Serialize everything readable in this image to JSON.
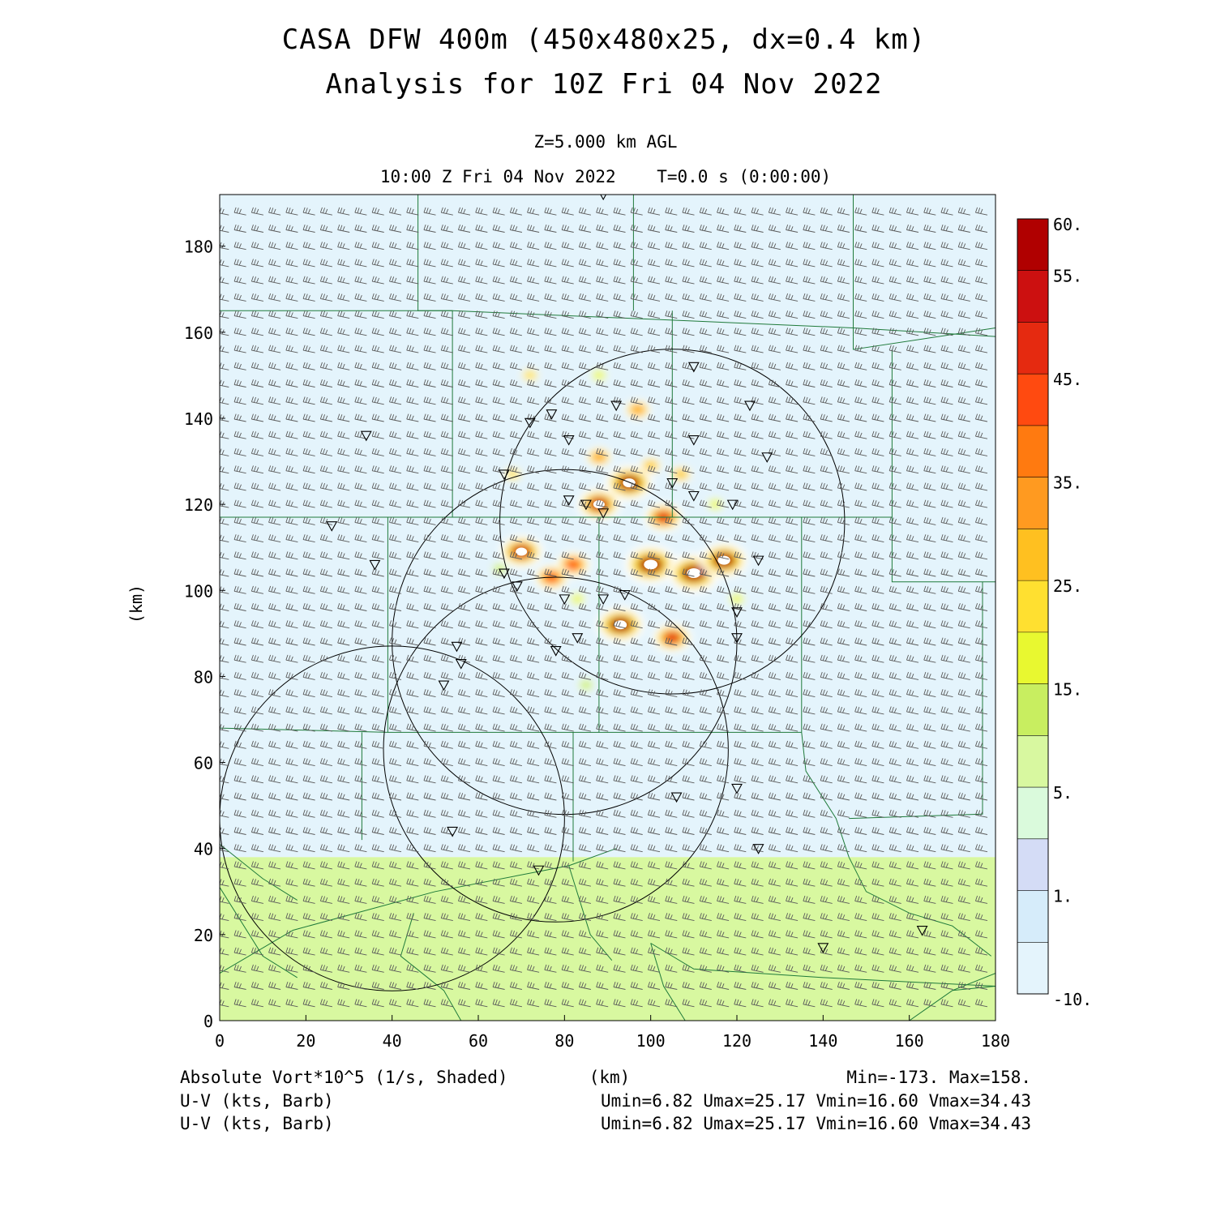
{
  "header": {
    "title_line1": "CASA DFW 400m (450x480x25, dx=0.4 km)",
    "title_line2": "Analysis for 10Z Fri 04 Nov 2022",
    "level": "Z=5.000 km AGL",
    "time": "10:00 Z Fri 04 Nov 2022    T=0.0 s (0:00:00)"
  },
  "footer": {
    "field_label": "Absolute Vort*10^5 (1/s, Shaded)",
    "xunit": "(km)",
    "minmax": "Min=-173. Max=158.",
    "barb1_label": "U-V (kts, Barb)",
    "barb1_stats": "Umin=6.82 Umax=25.17 Vmin=16.60 Vmax=34.43",
    "barb2_label": "U-V (kts, Barb)",
    "barb2_stats": "Umin=6.82 Umax=25.17 Vmin=16.60 Vmax=34.43"
  },
  "chart_data": {
    "type": "heatmap",
    "xlabel": "(km)",
    "ylabel": "(km)",
    "xlim": [
      0,
      180
    ],
    "ylim": [
      0,
      192
    ],
    "x_ticks": [
      0,
      20,
      40,
      60,
      80,
      100,
      120,
      140,
      160,
      180
    ],
    "y_ticks": [
      0,
      20,
      40,
      60,
      80,
      100,
      120,
      140,
      160,
      180
    ],
    "colorbar": {
      "labels": [
        "60.",
        "55.",
        "45.",
        "35.",
        "25.",
        "15.",
        "5.",
        "1.",
        "-10."
      ],
      "label_values": [
        60,
        55,
        45,
        35,
        25,
        15,
        5,
        1,
        -10
      ],
      "colors": [
        "#b00000",
        "#cc1010",
        "#e52a10",
        "#ff4a10",
        "#ff7a10",
        "#ff9a20",
        "#ffc020",
        "#ffe030",
        "#e8f830",
        "#c8ee60",
        "#d8f8a0",
        "#dafadc",
        "#d4dcf6",
        "#d6ecfa",
        "#e4f4fc"
      ]
    },
    "background": [
      {
        "region": "y >= 38 km",
        "value": -5,
        "color": "#e4f4fc"
      },
      {
        "region": "y < 38 km",
        "value": 8,
        "color": "#d8f8a0"
      }
    ],
    "vorticity_features": [
      {
        "x": 100,
        "y": 106,
        "value": 60
      },
      {
        "x": 110,
        "y": 104,
        "value": 60
      },
      {
        "x": 117,
        "y": 107,
        "value": 55
      },
      {
        "x": 93,
        "y": 92,
        "value": 55
      },
      {
        "x": 95,
        "y": 125,
        "value": 55
      },
      {
        "x": 88,
        "y": 120,
        "value": 50
      },
      {
        "x": 70,
        "y": 109,
        "value": 50
      },
      {
        "x": 103,
        "y": 117,
        "value": 45
      },
      {
        "x": 105,
        "y": 89,
        "value": 45
      },
      {
        "x": 82,
        "y": 106,
        "value": 40
      },
      {
        "x": 77,
        "y": 103,
        "value": 40
      },
      {
        "x": 88,
        "y": 131,
        "value": 30
      },
      {
        "x": 97,
        "y": 142,
        "value": 30
      },
      {
        "x": 100,
        "y": 129,
        "value": 25
      },
      {
        "x": 107,
        "y": 127,
        "value": 25
      },
      {
        "x": 72,
        "y": 150,
        "value": 20
      },
      {
        "x": 68,
        "y": 127,
        "value": 20
      },
      {
        "x": 83,
        "y": 98,
        "value": 15
      },
      {
        "x": 120,
        "y": 98,
        "value": 15
      },
      {
        "x": 88,
        "y": 150,
        "value": 15
      },
      {
        "x": 115,
        "y": 120,
        "value": 15
      },
      {
        "x": 65,
        "y": 105,
        "value": 10
      },
      {
        "x": 85,
        "y": 78,
        "value": 10
      }
    ],
    "wind": {
      "u_kts_range": [
        6.82,
        25.17
      ],
      "v_kts_range": [
        16.6,
        34.43
      ]
    },
    "radar_rings": [
      {
        "cx": 80,
        "cy": 88,
        "r": 40
      },
      {
        "cx": 105,
        "cy": 116,
        "r": 40
      },
      {
        "cx": 40,
        "cy": 47,
        "r": 40
      },
      {
        "cx": 78,
        "cy": 63,
        "r": 40
      }
    ],
    "stations": [
      [
        89,
        192
      ],
      [
        34,
        136
      ],
      [
        26,
        115
      ],
      [
        36,
        106
      ],
      [
        66,
        127
      ],
      [
        72,
        139
      ],
      [
        77,
        141
      ],
      [
        81,
        135
      ],
      [
        92,
        143
      ],
      [
        110,
        135
      ],
      [
        123,
        143
      ],
      [
        127,
        131
      ],
      [
        110,
        122
      ],
      [
        119,
        120
      ],
      [
        105,
        125
      ],
      [
        81,
        121
      ],
      [
        85,
        120
      ],
      [
        89,
        118
      ],
      [
        66,
        104
      ],
      [
        69,
        101
      ],
      [
        80,
        98
      ],
      [
        89,
        98
      ],
      [
        94,
        99
      ],
      [
        125,
        107
      ],
      [
        120,
        95
      ],
      [
        120,
        89
      ],
      [
        55,
        87
      ],
      [
        56,
        83
      ],
      [
        52,
        78
      ],
      [
        78,
        86
      ],
      [
        83,
        89
      ],
      [
        106,
        52
      ],
      [
        120,
        54
      ],
      [
        125,
        40
      ],
      [
        54,
        44
      ],
      [
        74,
        35
      ],
      [
        140,
        17
      ],
      [
        163,
        21
      ],
      [
        110,
        152
      ]
    ],
    "county_boundaries": [
      [
        [
          46,
          192
        ],
        [
          46,
          165
        ],
        [
          54,
          165
        ]
      ],
      [
        [
          96,
          192
        ],
        [
          96,
          165
        ]
      ],
      [
        [
          147,
          192
        ],
        [
          147,
          159
        ]
      ],
      [
        [
          0,
          165
        ],
        [
          54,
          165
        ],
        [
          54,
          117
        ]
      ],
      [
        [
          54,
          165
        ],
        [
          147,
          161
        ],
        [
          180,
          159
        ]
      ],
      [
        [
          147,
          159
        ],
        [
          147,
          156
        ],
        [
          180,
          161
        ]
      ],
      [
        [
          105,
          165
        ],
        [
          105,
          117
        ]
      ],
      [
        [
          156,
          156
        ],
        [
          156,
          102
        ],
        [
          180,
          102
        ]
      ],
      [
        [
          0,
          117
        ],
        [
          135,
          117
        ],
        [
          135,
          67
        ]
      ],
      [
        [
          135,
          117
        ],
        [
          156,
          117
        ]
      ],
      [
        [
          39,
          117
        ],
        [
          39,
          67
        ]
      ],
      [
        [
          88,
          117
        ],
        [
          88,
          67
        ]
      ],
      [
        [
          0,
          68
        ],
        [
          39,
          67
        ],
        [
          135,
          67
        ]
      ],
      [
        [
          33,
          67
        ],
        [
          33,
          42
        ]
      ],
      [
        [
          82,
          67
        ],
        [
          82,
          37
        ]
      ],
      [
        [
          135,
          67
        ],
        [
          136,
          58
        ],
        [
          143,
          47
        ],
        [
          146,
          38
        ]
      ],
      [
        [
          177,
          102
        ],
        [
          177,
          48
        ],
        [
          146,
          47
        ]
      ],
      [
        [
          0,
          41
        ],
        [
          10,
          33
        ],
        [
          18,
          28
        ]
      ],
      [
        [
          0,
          11
        ],
        [
          17,
          21
        ],
        [
          50,
          30
        ],
        [
          81,
          36
        ],
        [
          92,
          40
        ]
      ],
      [
        [
          0,
          31
        ],
        [
          10,
          15
        ],
        [
          18,
          10
        ]
      ],
      [
        [
          45,
          25
        ],
        [
          42,
          15
        ],
        [
          52,
          7
        ],
        [
          56,
          0
        ]
      ],
      [
        [
          81,
          36
        ],
        [
          86,
          20
        ],
        [
          91,
          14
        ]
      ],
      [
        [
          146,
          38
        ],
        [
          150,
          30
        ],
        [
          160,
          25
        ],
        [
          170,
          22
        ],
        [
          179,
          15
        ]
      ],
      [
        [
          100,
          18
        ],
        [
          110,
          12
        ],
        [
          140,
          10
        ],
        [
          180,
          8
        ]
      ],
      [
        [
          100,
          18
        ],
        [
          103,
          8
        ],
        [
          108,
          0
        ]
      ],
      [
        [
          170,
          7
        ],
        [
          180,
          8
        ]
      ],
      [
        [
          160,
          0
        ],
        [
          170,
          7
        ],
        [
          180,
          11
        ]
      ]
    ]
  }
}
